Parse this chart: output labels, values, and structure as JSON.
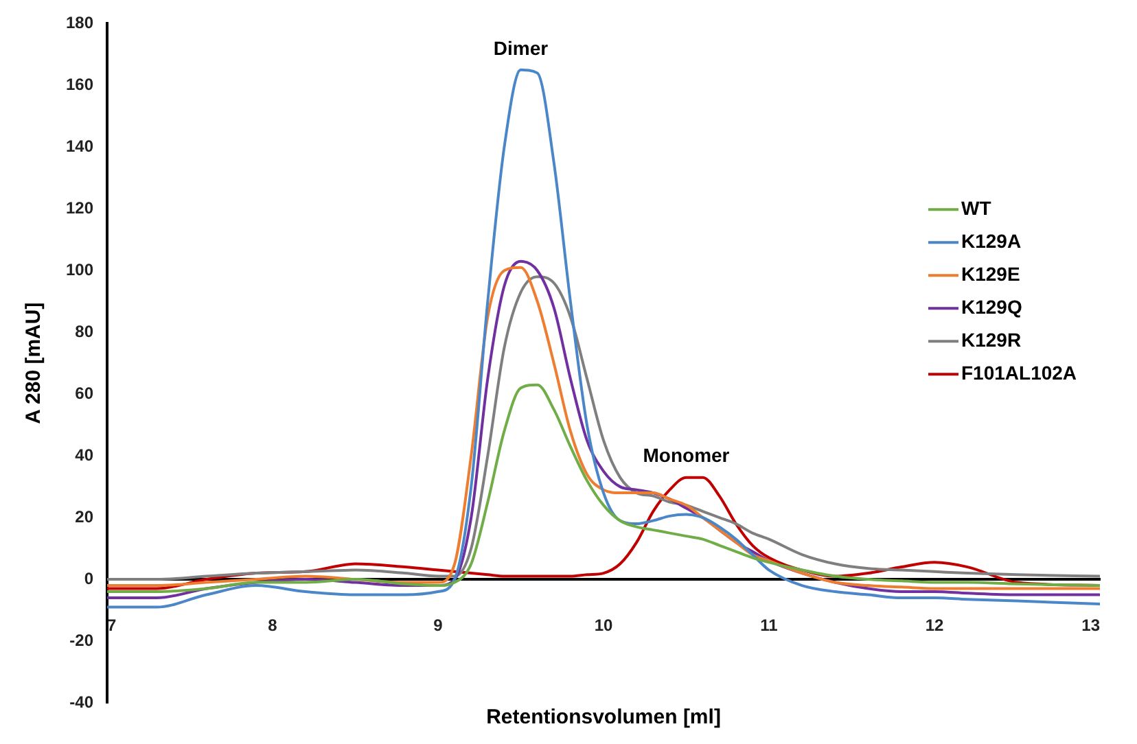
{
  "chart_data": {
    "type": "line",
    "xlabel": "Retentionsvolumen [ml]",
    "ylabel": "A 280 [mAU]",
    "x": [
      7,
      7.3,
      7.6,
      7.9,
      8.2,
      8.5,
      8.8,
      9.0,
      9.1,
      9.2,
      9.3,
      9.4,
      9.5,
      9.6,
      9.7,
      9.8,
      9.9,
      10.0,
      10.1,
      10.2,
      10.3,
      10.4,
      10.5,
      10.6,
      10.7,
      10.8,
      10.9,
      11.0,
      11.2,
      11.4,
      11.6,
      11.8,
      12.0,
      12.2,
      12.5,
      13
    ],
    "series": [
      {
        "name": "WT",
        "color": "#70ad47",
        "values": [
          -4,
          -4,
          -3,
          -1,
          -1,
          0,
          -1.5,
          -2,
          -1,
          5,
          25,
          48,
          62,
          63,
          55,
          43,
          32,
          24,
          19,
          17,
          16,
          15,
          14,
          13,
          11,
          9,
          7,
          5.5,
          3,
          1,
          0,
          -0.5,
          -1,
          -1,
          -1.5,
          -2
        ]
      },
      {
        "name": "K129A",
        "color": "#4a86c8",
        "values": [
          -9,
          -9,
          -5,
          -2,
          -4,
          -5,
          -5,
          -4,
          0,
          30,
          90,
          140,
          165,
          164,
          135,
          90,
          50,
          28,
          19,
          18,
          19,
          20.5,
          21,
          20,
          17,
          13,
          8,
          3,
          -2,
          -4,
          -5,
          -6,
          -6,
          -6.5,
          -7,
          -8
        ]
      },
      {
        "name": "K129E",
        "color": "#ed7d31",
        "values": [
          -2,
          -2,
          -1,
          0,
          1,
          0,
          -1,
          -1,
          5,
          40,
          85,
          100,
          101,
          90,
          70,
          48,
          34,
          29,
          28,
          28,
          28,
          26,
          24,
          20,
          16,
          12,
          8,
          6,
          2,
          -1,
          -2,
          -2.5,
          -3,
          -3,
          -3,
          -3
        ]
      },
      {
        "name": "K129Q",
        "color": "#7030a0",
        "values": [
          -6,
          -6,
          -3,
          -1,
          0,
          -1,
          -2,
          -2,
          0,
          20,
          65,
          95,
          103,
          100,
          88,
          65,
          45,
          35,
          30,
          29,
          28,
          26,
          23,
          20,
          16,
          12,
          9,
          6,
          2,
          -1,
          -3,
          -4,
          -4,
          -4.5,
          -5,
          -5
        ]
      },
      {
        "name": "K129R",
        "color": "#7f7f7f",
        "values": [
          0,
          0,
          1,
          2,
          2.5,
          3,
          2,
          1,
          1,
          10,
          40,
          75,
          93,
          98,
          96,
          85,
          65,
          45,
          33,
          28,
          27,
          25,
          24,
          22,
          20,
          18,
          15,
          13,
          8,
          5,
          3.5,
          3,
          2.5,
          2,
          1.5,
          1
        ]
      },
      {
        "name": "F101AL102A",
        "color": "#c00000",
        "values": [
          -3,
          -3,
          0,
          2,
          2.5,
          5,
          4,
          3,
          2.5,
          2,
          1.5,
          1,
          1,
          1,
          1,
          1,
          1.5,
          2,
          5,
          12,
          22,
          29,
          33,
          33,
          27,
          18,
          11,
          7,
          3,
          1,
          2,
          4,
          5.5,
          4,
          -1,
          -2
        ]
      }
    ],
    "xlim": [
      7,
      13
    ],
    "xticks": [
      7,
      8,
      9,
      10,
      11,
      12,
      13
    ],
    "ylim": [
      -40,
      180
    ],
    "yticks": [
      -40,
      -20,
      0,
      20,
      40,
      60,
      80,
      100,
      120,
      140,
      160,
      180
    ],
    "annotations": [
      {
        "text": "Dimer",
        "x": 9.5,
        "y": 165
      },
      {
        "text": "Monomer",
        "x": 10.5,
        "y": 33
      }
    ],
    "legend": "right",
    "marker": "none",
    "line_style": "solid",
    "grid": false
  }
}
